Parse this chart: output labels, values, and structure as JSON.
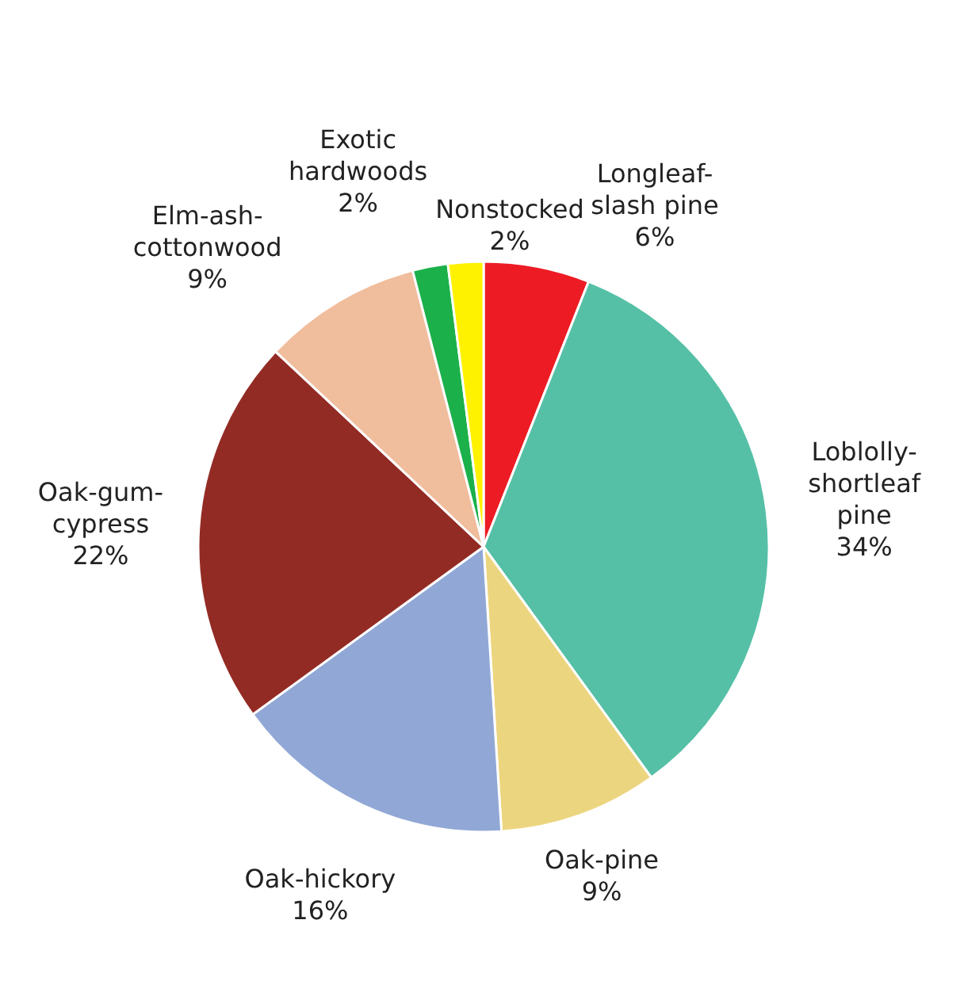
{
  "chart_data": {
    "type": "pie",
    "categories": [
      "Longleaf-\nslash pine",
      "Loblolly-\nshortleaf\npine",
      "Oak-pine",
      "Oak-hickory",
      "Oak-gum-\ncypress",
      "Elm-ash-\ncottonwood",
      "Exotic\nhardwoods",
      "Nonstocked"
    ],
    "values": [
      6,
      34,
      9,
      16,
      22,
      9,
      2,
      2
    ],
    "value_labels": [
      "6%",
      "34%",
      "9%",
      "16%",
      "22%",
      "9%",
      "2%",
      "2%"
    ],
    "colors": [
      "#ed1c24",
      "#55c0a6",
      "#ecd57f",
      "#91a8d6",
      "#932b25",
      "#f0bd9d",
      "#1bb04a",
      "#fff200"
    ]
  }
}
